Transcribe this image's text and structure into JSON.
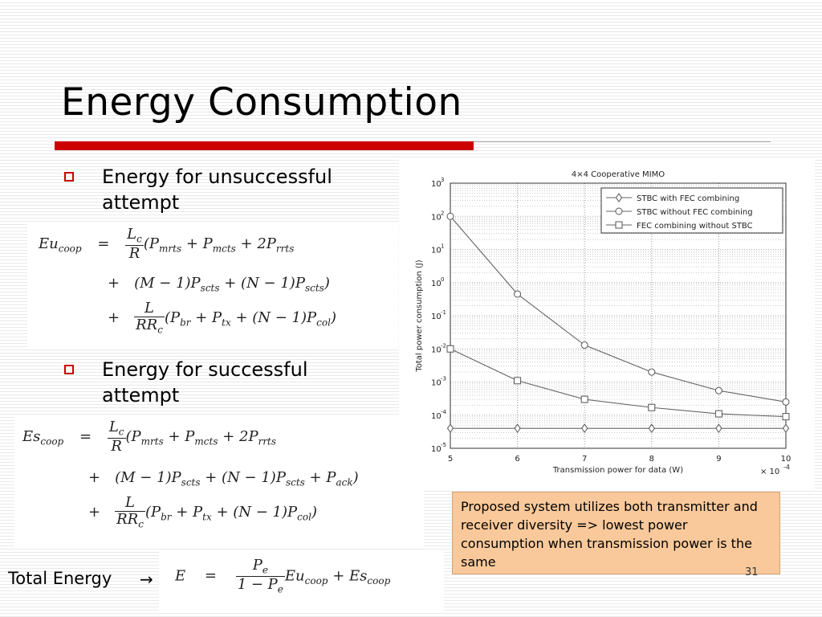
{
  "slide": {
    "title": "Energy Consumption",
    "page_number": "31"
  },
  "bullets": [
    {
      "label": "Energy for unsuccessful attempt"
    },
    {
      "label": "Energy for successful attempt"
    }
  ],
  "equations": {
    "unsuccessful": {
      "line1": {
        "lhs": "Eu",
        "lhs_sub": "coop",
        "frac_num": "L",
        "frac_num_sub": "c",
        "frac_den": "R",
        "rest": "(P",
        "t1_sub": "mrts",
        "t2": " + P",
        "t2_sub": "mcts",
        "t3": " + 2P",
        "t3_sub": "rrts"
      },
      "line2": {
        "text": "(M − 1)P",
        "s1": "scts",
        "t2": " + (N − 1)P",
        "s2": "scts",
        "end": ")"
      },
      "line3": {
        "frac_num": "L",
        "frac_den": "RR",
        "frac_den_sub": "c",
        "t1": "(P",
        "s1": "br",
        "t2": " + P",
        "s2": "tx",
        "t3": " + (N − 1)P",
        "s3": "col",
        "end": ")"
      }
    },
    "successful": {
      "line1": {
        "lhs": "Es",
        "lhs_sub": "coop",
        "frac_num": "L",
        "frac_num_sub": "c",
        "frac_den": "R",
        "rest": "(P",
        "t1_sub": "mrts",
        "t2": " + P",
        "t2_sub": "mcts",
        "t3": " + 2P",
        "t3_sub": "rrts"
      },
      "line2": {
        "text": "(M − 1)P",
        "s1": "scts",
        "t2": " + (N − 1)P",
        "s2": "scts",
        "t3": " + P",
        "s3": "ack",
        "end": ")"
      },
      "line3": {
        "frac_num": "L",
        "frac_den": "RR",
        "frac_den_sub": "c",
        "t1": "(P",
        "s1": "br",
        "t2": " + P",
        "s2": "tx",
        "t3": " + (N − 1)P",
        "s3": "col",
        "end": ")"
      }
    },
    "total": {
      "lhs": "E",
      "frac_num": "P",
      "frac_num_sub": "e",
      "frac_den": "1 − P",
      "frac_den_sub": "e",
      "t1": "Eu",
      "s1": "coop",
      "t2": " + Es",
      "s2": "coop"
    },
    "ops": {
      "eq": "=",
      "plus": "+"
    }
  },
  "total_label": "Total Energy",
  "note": "Proposed system utilizes both transmitter and receiver diversity => lowest power consumption when transmission power is the same",
  "chart_data": {
    "type": "line",
    "title": "4×4 Cooperative MIMO",
    "xlabel": "Transmission power for data (W)",
    "ylabel": "Total power consumption (J)",
    "x_multiplier_label": "× 10",
    "x_multiplier_exp": "-4",
    "x": [
      5,
      6,
      7,
      8,
      9,
      10
    ],
    "xlim": [
      5,
      10
    ],
    "ylim_log10": [
      -5,
      3
    ],
    "yscale": "log",
    "grid": true,
    "legend_position": "top-right",
    "x_tick_labels": [
      "5",
      "6",
      "7",
      "8",
      "9",
      "10"
    ],
    "y_tick_exponents": [
      "3",
      "2",
      "1",
      "0",
      "-1",
      "-2",
      "-3",
      "-4",
      "-5"
    ],
    "series": [
      {
        "name": "STBC with FEC combining",
        "marker": "diamond",
        "values": [
          4e-05,
          4e-05,
          4e-05,
          4e-05,
          4e-05,
          4e-05
        ]
      },
      {
        "name": "STBC without FEC combining",
        "marker": "circle",
        "values": [
          100,
          0.45,
          0.013,
          0.002,
          0.00055,
          0.00025
        ]
      },
      {
        "name": "FEC combining without STBC",
        "marker": "square",
        "values": [
          0.01,
          0.0011,
          0.0003,
          0.00017,
          0.00011,
          9e-05
        ]
      }
    ]
  }
}
